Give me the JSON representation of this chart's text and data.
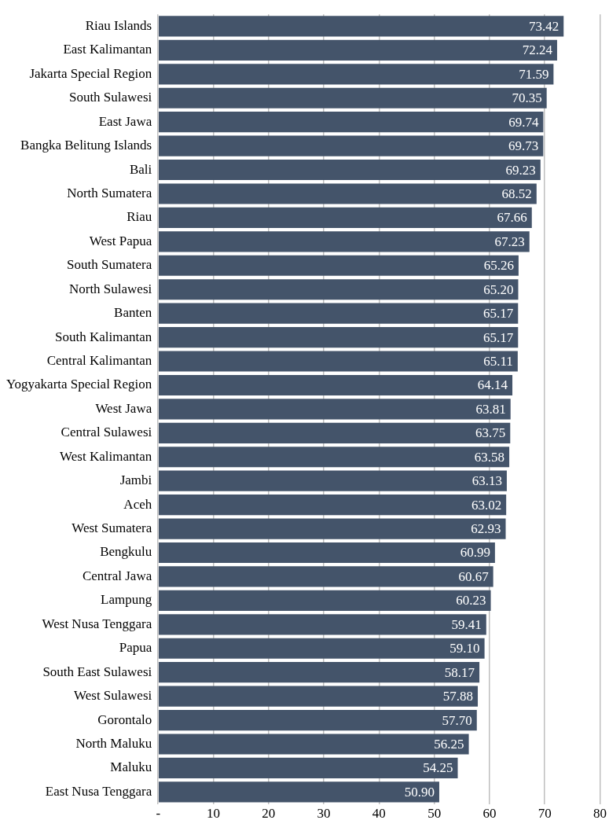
{
  "chart_data": {
    "type": "bar",
    "orientation": "horizontal",
    "categories": [
      "Riau Islands",
      "East Kalimantan",
      "Jakarta Special Region",
      "South Sulawesi",
      "East Jawa",
      "Bangka Belitung Islands",
      "Bali",
      "North Sumatera",
      "Riau",
      "West Papua",
      "South Sumatera",
      "North Sulawesi",
      "Banten",
      "South Kalimantan",
      "Central Kalimantan",
      "Yogyakarta Special Region",
      "West Jawa",
      "Central Sulawesi",
      "West Kalimantan",
      "Jambi",
      "Aceh",
      "West Sumatera",
      "Bengkulu",
      "Central Jawa",
      "Lampung",
      "West Nusa Tenggara",
      "Papua",
      "South East Sulawesi",
      "West Sulawesi",
      "Gorontalo",
      "North Maluku",
      "Maluku",
      "East Nusa Tenggara"
    ],
    "values": [
      73.42,
      72.24,
      71.59,
      70.35,
      69.74,
      69.73,
      69.23,
      68.52,
      67.66,
      67.23,
      65.26,
      65.2,
      65.17,
      65.17,
      65.11,
      64.14,
      63.81,
      63.75,
      63.58,
      63.13,
      63.02,
      62.93,
      60.99,
      60.67,
      60.23,
      59.41,
      59.1,
      58.17,
      57.88,
      57.7,
      56.25,
      54.25,
      50.9
    ],
    "value_labels": [
      "73.42",
      "72.24",
      "71.59",
      "70.35",
      "69.74",
      "69.73",
      "69.23",
      "68.52",
      "67.66",
      "67.23",
      "65.26",
      "65.20",
      "65.17",
      "65.17",
      "65.11",
      "64.14",
      "63.81",
      "63.75",
      "63.58",
      "63.13",
      "63.02",
      "62.93",
      "60.99",
      "60.67",
      "60.23",
      "59.41",
      "59.10",
      "58.17",
      "57.88",
      "57.70",
      "56.25",
      "54.25",
      "50.90"
    ],
    "color": "#44546a",
    "xlim": [
      0,
      80
    ],
    "xticks": [
      {
        "value": 0,
        "label": "-"
      },
      10,
      20,
      30,
      40,
      50,
      60,
      70,
      80
    ],
    "grid": "x",
    "legend": false
  }
}
